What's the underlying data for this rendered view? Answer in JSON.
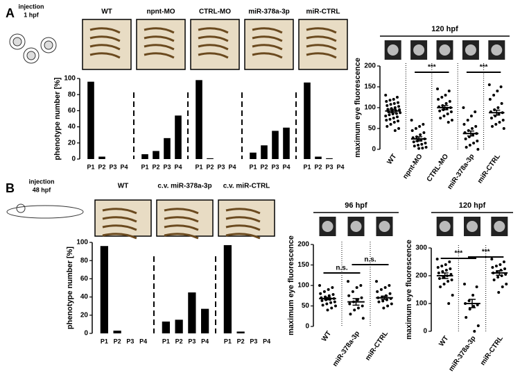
{
  "chart_data": [
    {
      "type": "bar",
      "panel_label": "A",
      "note": [
        "injection",
        "1 hpf"
      ],
      "ylabel": "phenotype number [%]",
      "ylim": [
        0,
        100
      ],
      "yticks": [
        0,
        20,
        40,
        60,
        80,
        100
      ],
      "color": "#000000",
      "groups": [
        {
          "name": "WT",
          "categories": [
            "P1",
            "P2",
            "P3",
            "P4"
          ],
          "values": [
            96,
            3,
            0,
            0
          ]
        },
        {
          "name": "npnt-MO",
          "categories": [
            "P1",
            "P2",
            "P3",
            "P4"
          ],
          "values": [
            6,
            10,
            26,
            54
          ]
        },
        {
          "name": "CTRL-MO",
          "categories": [
            "P1",
            "P2",
            "P3",
            "P4"
          ],
          "values": [
            98,
            1,
            0,
            0
          ]
        },
        {
          "name": "miR-378a-3p",
          "categories": [
            "P1",
            "P2",
            "P3",
            "P4"
          ],
          "values": [
            8,
            17,
            35,
            39
          ]
        },
        {
          "name": "miR-CTRL",
          "categories": [
            "P1",
            "P2",
            "P3",
            "P4"
          ],
          "values": [
            95,
            3,
            1,
            0
          ]
        }
      ]
    },
    {
      "type": "scatter",
      "title": "120 hpf",
      "ylabel": "maximum eye fluorescence",
      "ylim": [
        0,
        200
      ],
      "yticks": [
        0,
        50,
        100,
        150,
        200
      ],
      "color": "#000000",
      "categories": [
        "WT",
        "npnt-MO",
        "CTRL-MO",
        "miR-378a-3p",
        "miR-CTRL"
      ],
      "groups": [
        {
          "values": [
            130,
            125,
            120,
            118,
            115,
            112,
            110,
            108,
            105,
            103,
            100,
            98,
            96,
            95,
            93,
            92,
            90,
            88,
            86,
            85,
            83,
            80,
            78,
            75,
            72,
            70,
            68,
            65,
            60,
            55,
            50,
            45
          ],
          "mean": 92,
          "sem": 4
        },
        {
          "values": [
            70,
            60,
            55,
            50,
            45,
            40,
            35,
            30,
            28,
            25,
            22,
            20,
            18,
            15,
            12,
            10,
            8,
            5,
            3,
            2
          ],
          "mean": 25,
          "sem": 5
        },
        {
          "values": [
            145,
            140,
            130,
            125,
            120,
            115,
            110,
            105,
            102,
            100,
            98,
            95,
            92,
            90,
            85,
            80,
            75,
            70,
            65
          ],
          "mean": 100,
          "sem": 5
        },
        {
          "values": [
            100,
            90,
            80,
            70,
            60,
            55,
            50,
            45,
            40,
            38,
            35,
            30,
            25,
            20,
            15,
            10,
            5,
            0
          ],
          "mean": 38,
          "sem": 6
        },
        {
          "values": [
            155,
            150,
            140,
            130,
            120,
            110,
            100,
            95,
            90,
            88,
            85,
            80,
            75,
            70,
            65,
            60,
            55,
            50
          ],
          "mean": 88,
          "sem": 6
        }
      ],
      "annotations": [
        "***",
        "***"
      ]
    },
    {
      "type": "bar",
      "panel_label": "B",
      "note": [
        "injection",
        "48 hpf"
      ],
      "ylabel": "phenotype number [%]",
      "ylim": [
        0,
        100
      ],
      "yticks": [
        0,
        20,
        40,
        60,
        80,
        100
      ],
      "color": "#000000",
      "groups": [
        {
          "name": "WT",
          "categories": [
            "P1",
            "P2",
            "P3",
            "P4"
          ],
          "values": [
            96,
            3,
            0,
            0
          ]
        },
        {
          "name": "c.v. miR-378a-3p",
          "categories": [
            "P1",
            "P2",
            "P3",
            "P4"
          ],
          "values": [
            13,
            15,
            45,
            27
          ]
        },
        {
          "name": "c.v. miR-CTRL",
          "categories": [
            "P1",
            "P2",
            "P3",
            "P4"
          ],
          "values": [
            97,
            2,
            0,
            0
          ]
        }
      ]
    },
    {
      "type": "scatter",
      "title": "96 hpf",
      "ylabel": "maximum eye fluorescence",
      "ylim": [
        0,
        200
      ],
      "yticks": [
        0,
        50,
        100,
        150,
        200
      ],
      "color": "#000000",
      "categories": [
        "WT",
        "miR-378a-3p",
        "miR-CTRL"
      ],
      "groups": [
        {
          "values": [
            100,
            95,
            90,
            85,
            80,
            78,
            75,
            72,
            70,
            68,
            66,
            65,
            63,
            60,
            58,
            55,
            52,
            50,
            45,
            40
          ],
          "mean": 68,
          "sem": 3
        },
        {
          "values": [
            110,
            100,
            95,
            85,
            75,
            70,
            65,
            60,
            55,
            50,
            45,
            40,
            30,
            20
          ],
          "mean": 60,
          "sem": 8
        },
        {
          "values": [
            110,
            100,
            95,
            90,
            85,
            80,
            75,
            72,
            70,
            68,
            65,
            62,
            60,
            55,
            50,
            45
          ],
          "mean": 70,
          "sem": 4
        }
      ],
      "annotations": [
        "n.s.",
        "n.s."
      ]
    },
    {
      "type": "scatter",
      "title": "120 hpf",
      "ylabel": "maximum eye fluorescence",
      "ylim": [
        0,
        300
      ],
      "yticks": [
        0,
        100,
        200,
        300
      ],
      "color": "#000000",
      "categories": [
        "WT",
        "miR-378a-3p",
        "miR-CTRL"
      ],
      "groups": [
        {
          "values": [
            260,
            250,
            240,
            235,
            230,
            225,
            220,
            215,
            210,
            205,
            200,
            195,
            190,
            185,
            180,
            170,
            160,
            130,
            100
          ],
          "mean": 200,
          "sem": 10
        },
        {
          "values": [
            170,
            160,
            130,
            110,
            100,
            95,
            90,
            80,
            50,
            20,
            0
          ],
          "mean": 100,
          "sem": 15
        },
        {
          "values": [
            260,
            250,
            240,
            235,
            230,
            225,
            220,
            215,
            210,
            205,
            200,
            195,
            185,
            170,
            160,
            140
          ],
          "mean": 210,
          "sem": 8
        }
      ],
      "annotations": [
        "***",
        "***"
      ]
    }
  ]
}
